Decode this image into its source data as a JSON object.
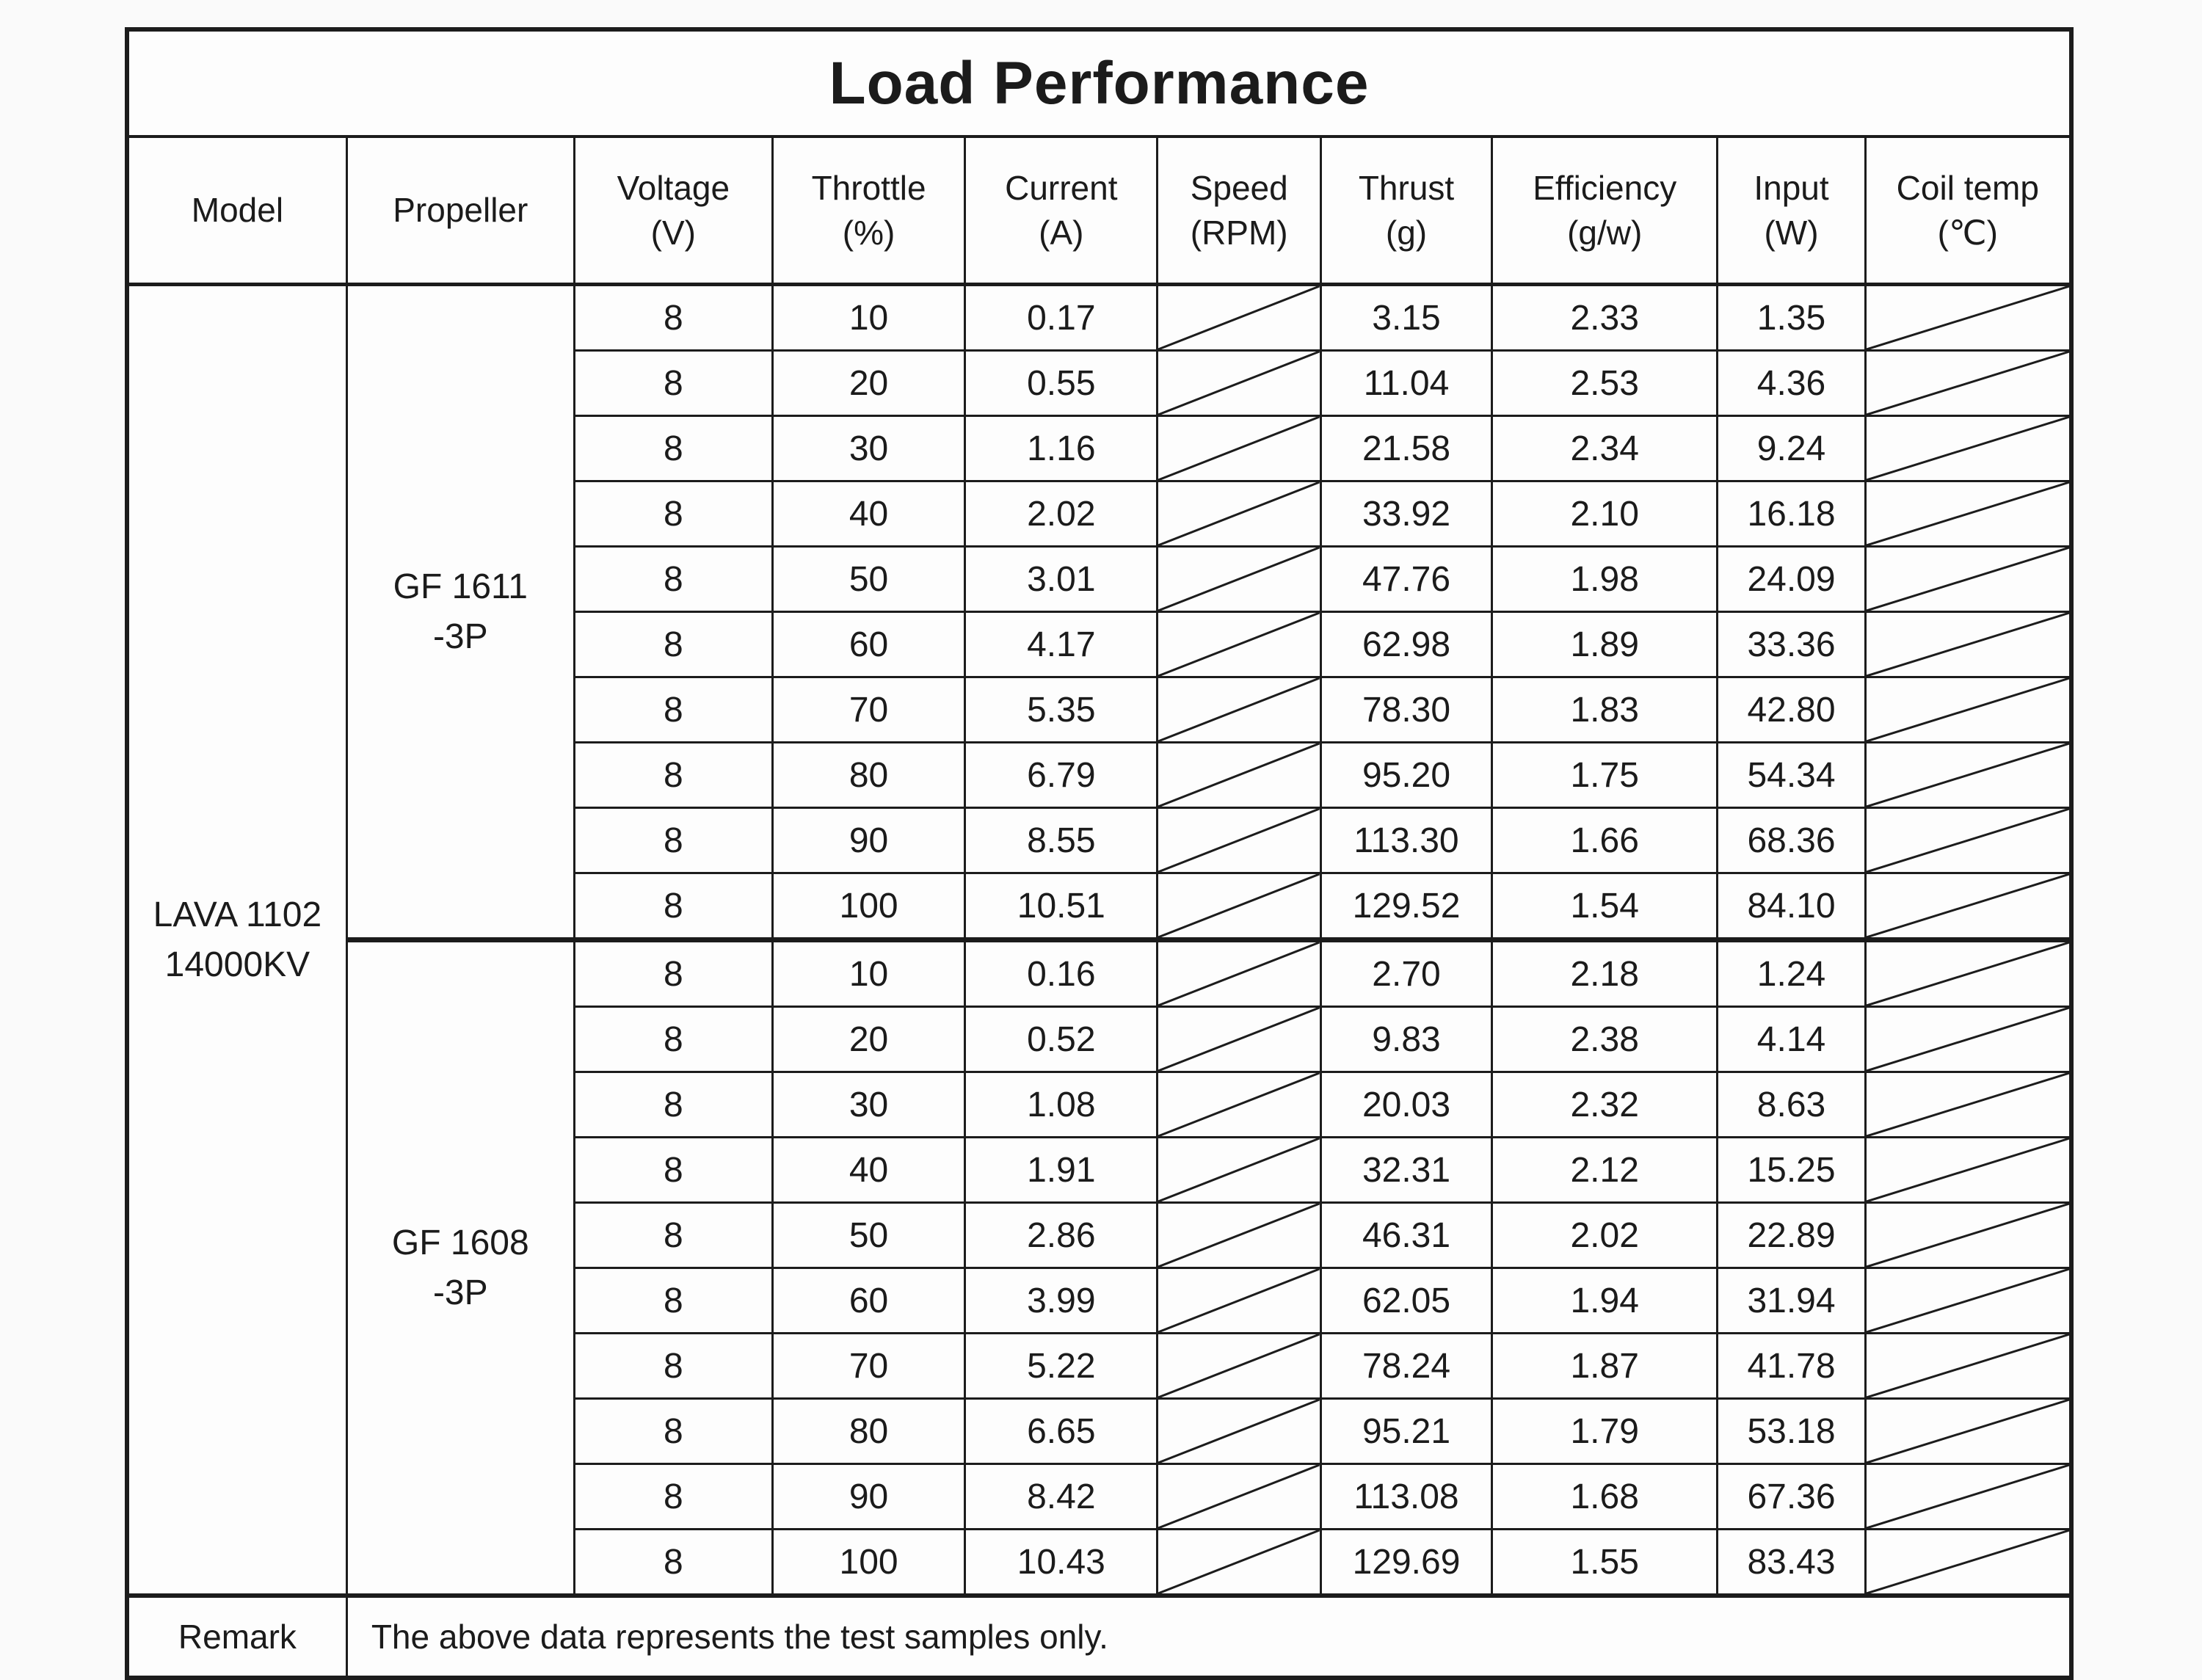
{
  "table": {
    "title": "Load Performance",
    "columns": [
      {
        "key": "model",
        "label": "Model",
        "unit": ""
      },
      {
        "key": "propeller",
        "label": "Propeller",
        "unit": ""
      },
      {
        "key": "voltage",
        "label": "Voltage",
        "unit": "(V)"
      },
      {
        "key": "throttle",
        "label": "Throttle",
        "unit": "(%)"
      },
      {
        "key": "current",
        "label": "Current",
        "unit": "(A)"
      },
      {
        "key": "speed",
        "label": "Speed",
        "unit": "(RPM)"
      },
      {
        "key": "thrust",
        "label": "Thrust",
        "unit": "(g)"
      },
      {
        "key": "efficiency",
        "label": "Efficiency",
        "unit": "(g/w)"
      },
      {
        "key": "input",
        "label": "Input",
        "unit": "(W)"
      },
      {
        "key": "coil_temp",
        "label": "Coil temp",
        "unit": "(℃)"
      }
    ],
    "model_lines": [
      "LAVA 1102",
      "14000KV"
    ],
    "groups": [
      {
        "propeller_lines": [
          "GF 1611",
          "-3P"
        ],
        "rows": [
          {
            "voltage": "8",
            "throttle": "10",
            "current": "0.17",
            "speed": null,
            "thrust": "3.15",
            "efficiency": "2.33",
            "input": "1.35",
            "coil_temp": null
          },
          {
            "voltage": "8",
            "throttle": "20",
            "current": "0.55",
            "speed": null,
            "thrust": "11.04",
            "efficiency": "2.53",
            "input": "4.36",
            "coil_temp": null
          },
          {
            "voltage": "8",
            "throttle": "30",
            "current": "1.16",
            "speed": null,
            "thrust": "21.58",
            "efficiency": "2.34",
            "input": "9.24",
            "coil_temp": null
          },
          {
            "voltage": "8",
            "throttle": "40",
            "current": "2.02",
            "speed": null,
            "thrust": "33.92",
            "efficiency": "2.10",
            "input": "16.18",
            "coil_temp": null
          },
          {
            "voltage": "8",
            "throttle": "50",
            "current": "3.01",
            "speed": null,
            "thrust": "47.76",
            "efficiency": "1.98",
            "input": "24.09",
            "coil_temp": null
          },
          {
            "voltage": "8",
            "throttle": "60",
            "current": "4.17",
            "speed": null,
            "thrust": "62.98",
            "efficiency": "1.89",
            "input": "33.36",
            "coil_temp": null
          },
          {
            "voltage": "8",
            "throttle": "70",
            "current": "5.35",
            "speed": null,
            "thrust": "78.30",
            "efficiency": "1.83",
            "input": "42.80",
            "coil_temp": null
          },
          {
            "voltage": "8",
            "throttle": "80",
            "current": "6.79",
            "speed": null,
            "thrust": "95.20",
            "efficiency": "1.75",
            "input": "54.34",
            "coil_temp": null
          },
          {
            "voltage": "8",
            "throttle": "90",
            "current": "8.55",
            "speed": null,
            "thrust": "113.30",
            "efficiency": "1.66",
            "input": "68.36",
            "coil_temp": null
          },
          {
            "voltage": "8",
            "throttle": "100",
            "current": "10.51",
            "speed": null,
            "thrust": "129.52",
            "efficiency": "1.54",
            "input": "84.10",
            "coil_temp": null
          }
        ]
      },
      {
        "propeller_lines": [
          "GF 1608",
          "-3P"
        ],
        "rows": [
          {
            "voltage": "8",
            "throttle": "10",
            "current": "0.16",
            "speed": null,
            "thrust": "2.70",
            "efficiency": "2.18",
            "input": "1.24",
            "coil_temp": null
          },
          {
            "voltage": "8",
            "throttle": "20",
            "current": "0.52",
            "speed": null,
            "thrust": "9.83",
            "efficiency": "2.38",
            "input": "4.14",
            "coil_temp": null
          },
          {
            "voltage": "8",
            "throttle": "30",
            "current": "1.08",
            "speed": null,
            "thrust": "20.03",
            "efficiency": "2.32",
            "input": "8.63",
            "coil_temp": null
          },
          {
            "voltage": "8",
            "throttle": "40",
            "current": "1.91",
            "speed": null,
            "thrust": "32.31",
            "efficiency": "2.12",
            "input": "15.25",
            "coil_temp": null
          },
          {
            "voltage": "8",
            "throttle": "50",
            "current": "2.86",
            "speed": null,
            "thrust": "46.31",
            "efficiency": "2.02",
            "input": "22.89",
            "coil_temp": null
          },
          {
            "voltage": "8",
            "throttle": "60",
            "current": "3.99",
            "speed": null,
            "thrust": "62.05",
            "efficiency": "1.94",
            "input": "31.94",
            "coil_temp": null
          },
          {
            "voltage": "8",
            "throttle": "70",
            "current": "5.22",
            "speed": null,
            "thrust": "78.24",
            "efficiency": "1.87",
            "input": "41.78",
            "coil_temp": null
          },
          {
            "voltage": "8",
            "throttle": "80",
            "current": "6.65",
            "speed": null,
            "thrust": "95.21",
            "efficiency": "1.79",
            "input": "53.18",
            "coil_temp": null
          },
          {
            "voltage": "8",
            "throttle": "90",
            "current": "8.42",
            "speed": null,
            "thrust": "113.08",
            "efficiency": "1.68",
            "input": "67.36",
            "coil_temp": null
          },
          {
            "voltage": "8",
            "throttle": "100",
            "current": "10.43",
            "speed": null,
            "thrust": "129.69",
            "efficiency": "1.55",
            "input": "83.43",
            "coil_temp": null
          }
        ]
      }
    ],
    "remark_label": "Remark",
    "remark_text": "The above data represents the test samples only."
  }
}
